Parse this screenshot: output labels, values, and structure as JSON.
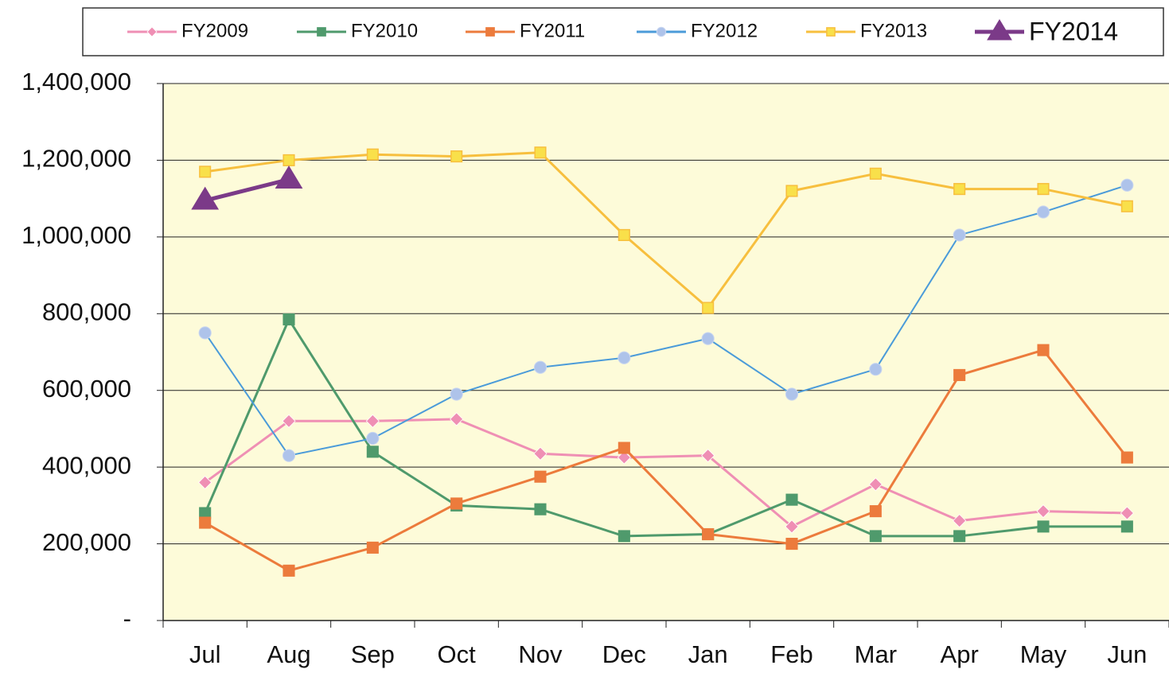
{
  "chart_data": {
    "type": "line",
    "categories": [
      "Jul",
      "Aug",
      "Sep",
      "Oct",
      "Nov",
      "Dec",
      "Jan",
      "Feb",
      "Mar",
      "Apr",
      "May",
      "Jun"
    ],
    "series": [
      {
        "name": "FY2009",
        "color": "#ef8fb4",
        "marker": "diamond",
        "values": [
          360000,
          520000,
          520000,
          525000,
          435000,
          425000,
          430000,
          245000,
          355000,
          260000,
          285000,
          280000
        ]
      },
      {
        "name": "FY2010",
        "color": "#4f9a6c",
        "marker": "square",
        "values": [
          280000,
          785000,
          440000,
          300000,
          290000,
          220000,
          225000,
          315000,
          220000,
          220000,
          245000,
          245000
        ]
      },
      {
        "name": "FY2011",
        "color": "#ec7b3c",
        "marker": "square",
        "values": [
          255000,
          130000,
          190000,
          305000,
          375000,
          450000,
          225000,
          200000,
          285000,
          640000,
          705000,
          425000
        ]
      },
      {
        "name": "FY2012",
        "color": "#4b9bd9",
        "marker": "circle",
        "values": [
          750000,
          430000,
          475000,
          590000,
          660000,
          685000,
          735000,
          590000,
          655000,
          1005000,
          1065000,
          1135000
        ]
      },
      {
        "name": "FY2013",
        "color": "#f7bf3e",
        "marker": "square",
        "values": [
          1170000,
          1200000,
          1215000,
          1210000,
          1220000,
          1005000,
          815000,
          1120000,
          1165000,
          1125000,
          1125000,
          1080000
        ]
      },
      {
        "name": "FY2014",
        "color": "#7b3a88",
        "marker": "triangle",
        "values": [
          1095000,
          1150000,
          null,
          null,
          null,
          null,
          null,
          null,
          null,
          null,
          null,
          null
        ]
      }
    ],
    "ylim": [
      0,
      1400000
    ],
    "yticks": [
      {
        "value": 0,
        "label": "-"
      },
      {
        "value": 200000,
        "label": "200,000"
      },
      {
        "value": 400000,
        "label": "400,000"
      },
      {
        "value": 600000,
        "label": "600,000"
      },
      {
        "value": 800000,
        "label": "800,000"
      },
      {
        "value": 1000000,
        "label": "1,000,000"
      },
      {
        "value": 1200000,
        "label": "1,200,000"
      },
      {
        "value": 1400000,
        "label": "1,400,000"
      }
    ],
    "grid": true,
    "legend": "top"
  }
}
